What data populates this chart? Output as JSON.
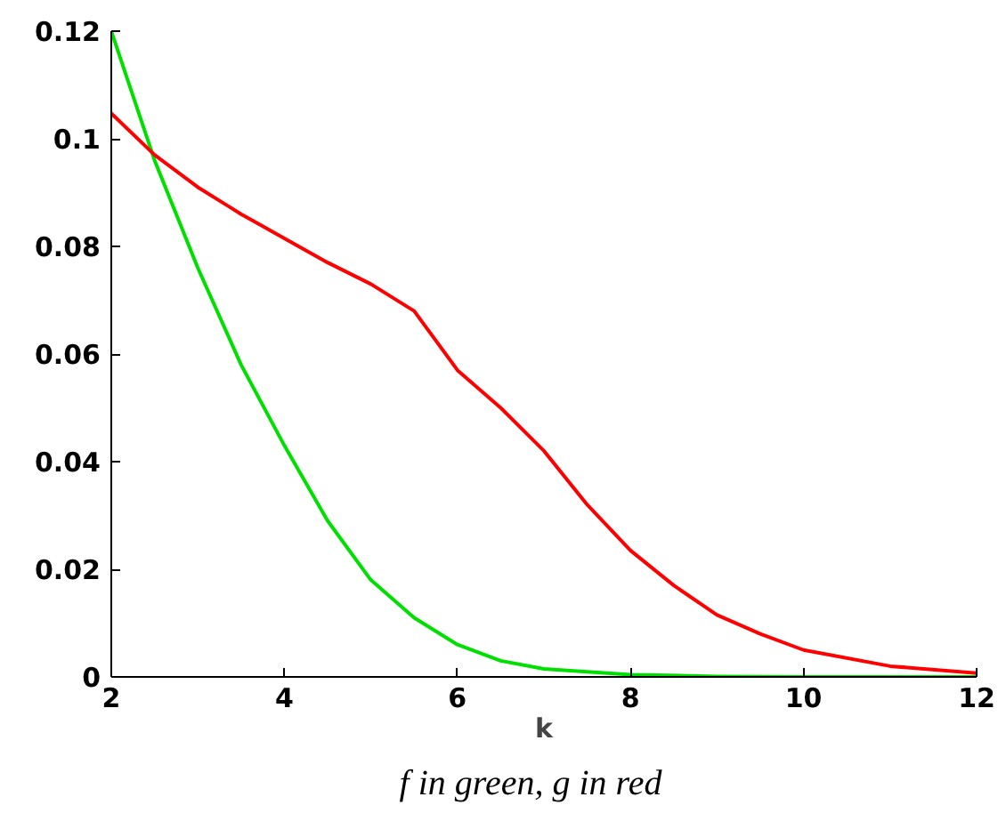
{
  "chart_data": {
    "type": "line",
    "xlabel": "k",
    "annotations": [
      "f  in green,  g  in red"
    ],
    "xlim": [
      2,
      12
    ],
    "ylim": [
      0,
      0.12
    ],
    "xticks": [
      2,
      4,
      6,
      8,
      10,
      12
    ],
    "yticks": [
      0,
      0.02,
      0.04,
      0.06,
      0.08,
      0.1,
      0.12
    ],
    "grid": false,
    "line_style": "solid",
    "marker": "none",
    "series": [
      {
        "color": "#00e000",
        "x": [
          2,
          2.5,
          3,
          3.5,
          4,
          4.5,
          5,
          5.5,
          6,
          6.5,
          7,
          8,
          9,
          10,
          12
        ],
        "values": [
          0.12,
          0.096,
          0.076,
          0.058,
          0.043,
          0.029,
          0.018,
          0.011,
          0.006,
          0.003,
          0.0015,
          0.0004,
          0.0001,
          0,
          0
        ]
      },
      {
        "color": "#ff0000",
        "x": [
          2,
          2.5,
          3,
          3.5,
          4,
          4.5,
          5,
          5.5,
          6,
          6.5,
          7,
          7.5,
          8,
          8.5,
          9,
          9.5,
          10,
          11,
          12
        ],
        "values": [
          0.1047,
          0.097,
          0.091,
          0.086,
          0.0815,
          0.077,
          0.073,
          0.068,
          0.057,
          0.05,
          0.042,
          0.032,
          0.0235,
          0.017,
          0.0115,
          0.008,
          0.005,
          0.002,
          0.0007
        ]
      }
    ]
  }
}
